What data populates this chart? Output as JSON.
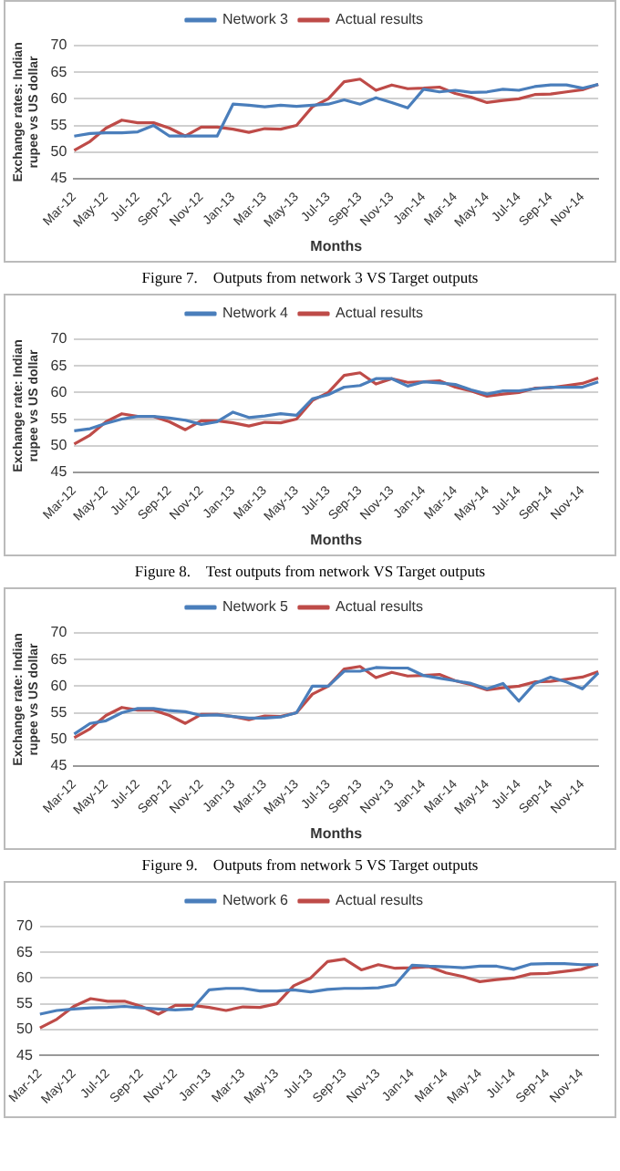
{
  "chart_data": [
    {
      "type": "line",
      "xlabel": "Months",
      "ylabel": "Exchange rates: Indian rupee vs US dollar",
      "categories": [
        "Mar-12",
        null,
        "May-12",
        null,
        "Jul-12",
        null,
        "Sep-12",
        null,
        "Nov-12",
        null,
        "Jan-13",
        null,
        "Mar-13",
        null,
        "May-13",
        null,
        "Jul-13",
        null,
        "Sep-13",
        null,
        "Nov-13",
        null,
        "Jan-14",
        null,
        "Mar-14",
        null,
        "May-14",
        null,
        "Jul-14",
        null,
        "Sep-14",
        null,
        "Nov-14",
        null
      ],
      "ylim": [
        45,
        70
      ],
      "yticks": [
        45,
        50,
        55,
        60,
        65,
        70
      ],
      "grid": "y",
      "legend": "top",
      "marker": "none",
      "series": [
        {
          "name": "Network 3",
          "color": "#4a7ebb",
          "values": [
            53,
            53.5,
            53.6,
            53.6,
            53.8,
            55,
            53,
            53,
            53,
            53,
            59,
            58.8,
            58.5,
            58.8,
            58.6,
            58.8,
            59,
            59.8,
            59,
            60.2,
            59.3,
            58.3,
            61.8,
            61.3,
            61.6,
            61.2,
            61.3,
            61.8,
            61.6,
            62.3,
            62.6,
            62.6,
            62,
            62.7
          ]
        },
        {
          "name": "Actual results",
          "color": "#be4b48",
          "values": [
            50.3,
            52,
            54.5,
            56,
            55.5,
            55.5,
            54.5,
            53,
            54.7,
            54.7,
            54.3,
            53.7,
            54.4,
            54.3,
            55,
            58.5,
            60,
            63.2,
            63.7,
            61.6,
            62.6,
            61.9,
            62,
            62.2,
            61,
            60.3,
            59.3,
            59.7,
            60,
            60.8,
            60.9,
            61.3,
            61.7,
            62.7
          ]
        }
      ],
      "annotations": [
        "Figure 7.    Outputs from network 3 VS Target outputs"
      ]
    },
    {
      "type": "line",
      "xlabel": "Months",
      "ylabel": "Exchange rate: Indian rupee vs US dollar",
      "categories": [
        "Mar-12",
        null,
        "May-12",
        null,
        "Jul-12",
        null,
        "Sep-12",
        null,
        "Nov-12",
        null,
        "Jan-13",
        null,
        "Mar-13",
        null,
        "May-13",
        null,
        "Jul-13",
        null,
        "Sep-13",
        null,
        "Nov-13",
        null,
        "Jan-14",
        null,
        "Mar-14",
        null,
        "May-14",
        null,
        "Jul-14",
        null,
        "Sep-14",
        null,
        "Nov-14",
        null
      ],
      "ylim": [
        45,
        70
      ],
      "yticks": [
        45,
        50,
        55,
        60,
        65,
        70
      ],
      "grid": "y",
      "legend": "top",
      "marker": "none",
      "series": [
        {
          "name": "Network 4",
          "color": "#4a7ebb",
          "values": [
            52.8,
            53.2,
            54.2,
            55,
            55.5,
            55.5,
            55.2,
            54.8,
            54,
            54.5,
            56.3,
            55.3,
            55.6,
            56,
            55.7,
            58.8,
            59.6,
            61,
            61.3,
            62.6,
            62.6,
            61.2,
            62,
            61.8,
            61.5,
            60.5,
            59.7,
            60.3,
            60.3,
            60.7,
            61,
            61,
            61,
            62
          ]
        },
        {
          "name": "Actual results",
          "color": "#be4b48",
          "values": [
            50.3,
            52,
            54.5,
            56,
            55.5,
            55.5,
            54.5,
            53,
            54.7,
            54.7,
            54.3,
            53.7,
            54.4,
            54.3,
            55,
            58.5,
            60,
            63.2,
            63.7,
            61.6,
            62.6,
            61.9,
            62,
            62.2,
            61,
            60.3,
            59.3,
            59.7,
            60,
            60.8,
            60.9,
            61.3,
            61.7,
            62.7
          ]
        }
      ],
      "annotations": [
        "Figure 8.    Test outputs from network VS Target outputs"
      ]
    },
    {
      "type": "line",
      "xlabel": "Months",
      "ylabel": "Exchange rate: Indian rupee vs US dollar",
      "categories": [
        "Mar-12",
        null,
        "May-12",
        null,
        "Jul-12",
        null,
        "Sep-12",
        null,
        "Nov-12",
        null,
        "Jan-13",
        null,
        "Mar-13",
        null,
        "May-13",
        null,
        "Jul-13",
        null,
        "Sep-13",
        null,
        "Nov-13",
        null,
        "Jan-14",
        null,
        "Mar-14",
        null,
        "May-14",
        null,
        "Jul-14",
        null,
        "Sep-14",
        null,
        "Nov-14",
        null
      ],
      "ylim": [
        45,
        70
      ],
      "yticks": [
        45,
        50,
        55,
        60,
        65,
        70
      ],
      "grid": "y",
      "legend": "top",
      "marker": "none",
      "series": [
        {
          "name": "Network 5",
          "color": "#4a7ebb",
          "values": [
            51,
            53,
            53.5,
            55,
            55.8,
            55.8,
            55.4,
            55.2,
            54.5,
            54.6,
            54.3,
            54,
            54,
            54.2,
            55,
            60,
            60,
            62.8,
            62.8,
            63.5,
            63.4,
            63.4,
            62,
            61.5,
            61,
            60.5,
            59.5,
            60.5,
            57.2,
            60.5,
            61.7,
            60.8,
            59.5,
            62.5
          ]
        },
        {
          "name": "Actual results",
          "color": "#be4b48",
          "values": [
            50.3,
            52,
            54.5,
            56,
            55.5,
            55.5,
            54.5,
            53,
            54.7,
            54.7,
            54.3,
            53.7,
            54.4,
            54.3,
            55,
            58.5,
            60,
            63.2,
            63.7,
            61.6,
            62.6,
            61.9,
            62,
            62.2,
            61,
            60.3,
            59.3,
            59.7,
            60,
            60.8,
            60.9,
            61.3,
            61.7,
            62.7
          ]
        }
      ],
      "annotations": [
        "Figure 9.    Outputs from network 5 VS Target outputs"
      ]
    },
    {
      "type": "line",
      "categories": [
        "Mar-12",
        null,
        "May-12",
        null,
        "Jul-12",
        null,
        "Sep-12",
        null,
        "Nov-12",
        null,
        "Jan-13",
        null,
        "Mar-13",
        null,
        "May-13",
        null,
        "Jul-13",
        null,
        "Sep-13",
        null,
        "Nov-13",
        null,
        "Jan-14",
        null,
        "Mar-14",
        null,
        "May-14",
        null,
        "Jul-14",
        null,
        "Sep-14",
        null,
        "Nov-14",
        null
      ],
      "ylim": [
        45,
        70
      ],
      "yticks": [
        45,
        50,
        55,
        60,
        65,
        70
      ],
      "grid": "y",
      "legend": "top",
      "marker": "none",
      "series": [
        {
          "name": "Network 6",
          "color": "#4a7ebb",
          "values": [
            53,
            53.7,
            54,
            54.2,
            54.3,
            54.5,
            54.2,
            54,
            53.8,
            54,
            57.7,
            58,
            58,
            57.5,
            57.5,
            57.7,
            57.3,
            57.8,
            58,
            58,
            58.1,
            58.7,
            62.5,
            62.3,
            62.2,
            62,
            62.3,
            62.3,
            61.7,
            62.7,
            62.8,
            62.8,
            62.6,
            62.6
          ]
        },
        {
          "name": "Actual results",
          "color": "#be4b48",
          "values": [
            50.3,
            52,
            54.5,
            56,
            55.5,
            55.5,
            54.5,
            53,
            54.7,
            54.7,
            54.3,
            53.7,
            54.4,
            54.3,
            55,
            58.5,
            60,
            63.2,
            63.7,
            61.6,
            62.6,
            61.9,
            62,
            62.2,
            61,
            60.3,
            59.3,
            59.7,
            60,
            60.8,
            60.9,
            61.3,
            61.7,
            62.7
          ]
        }
      ]
    }
  ]
}
